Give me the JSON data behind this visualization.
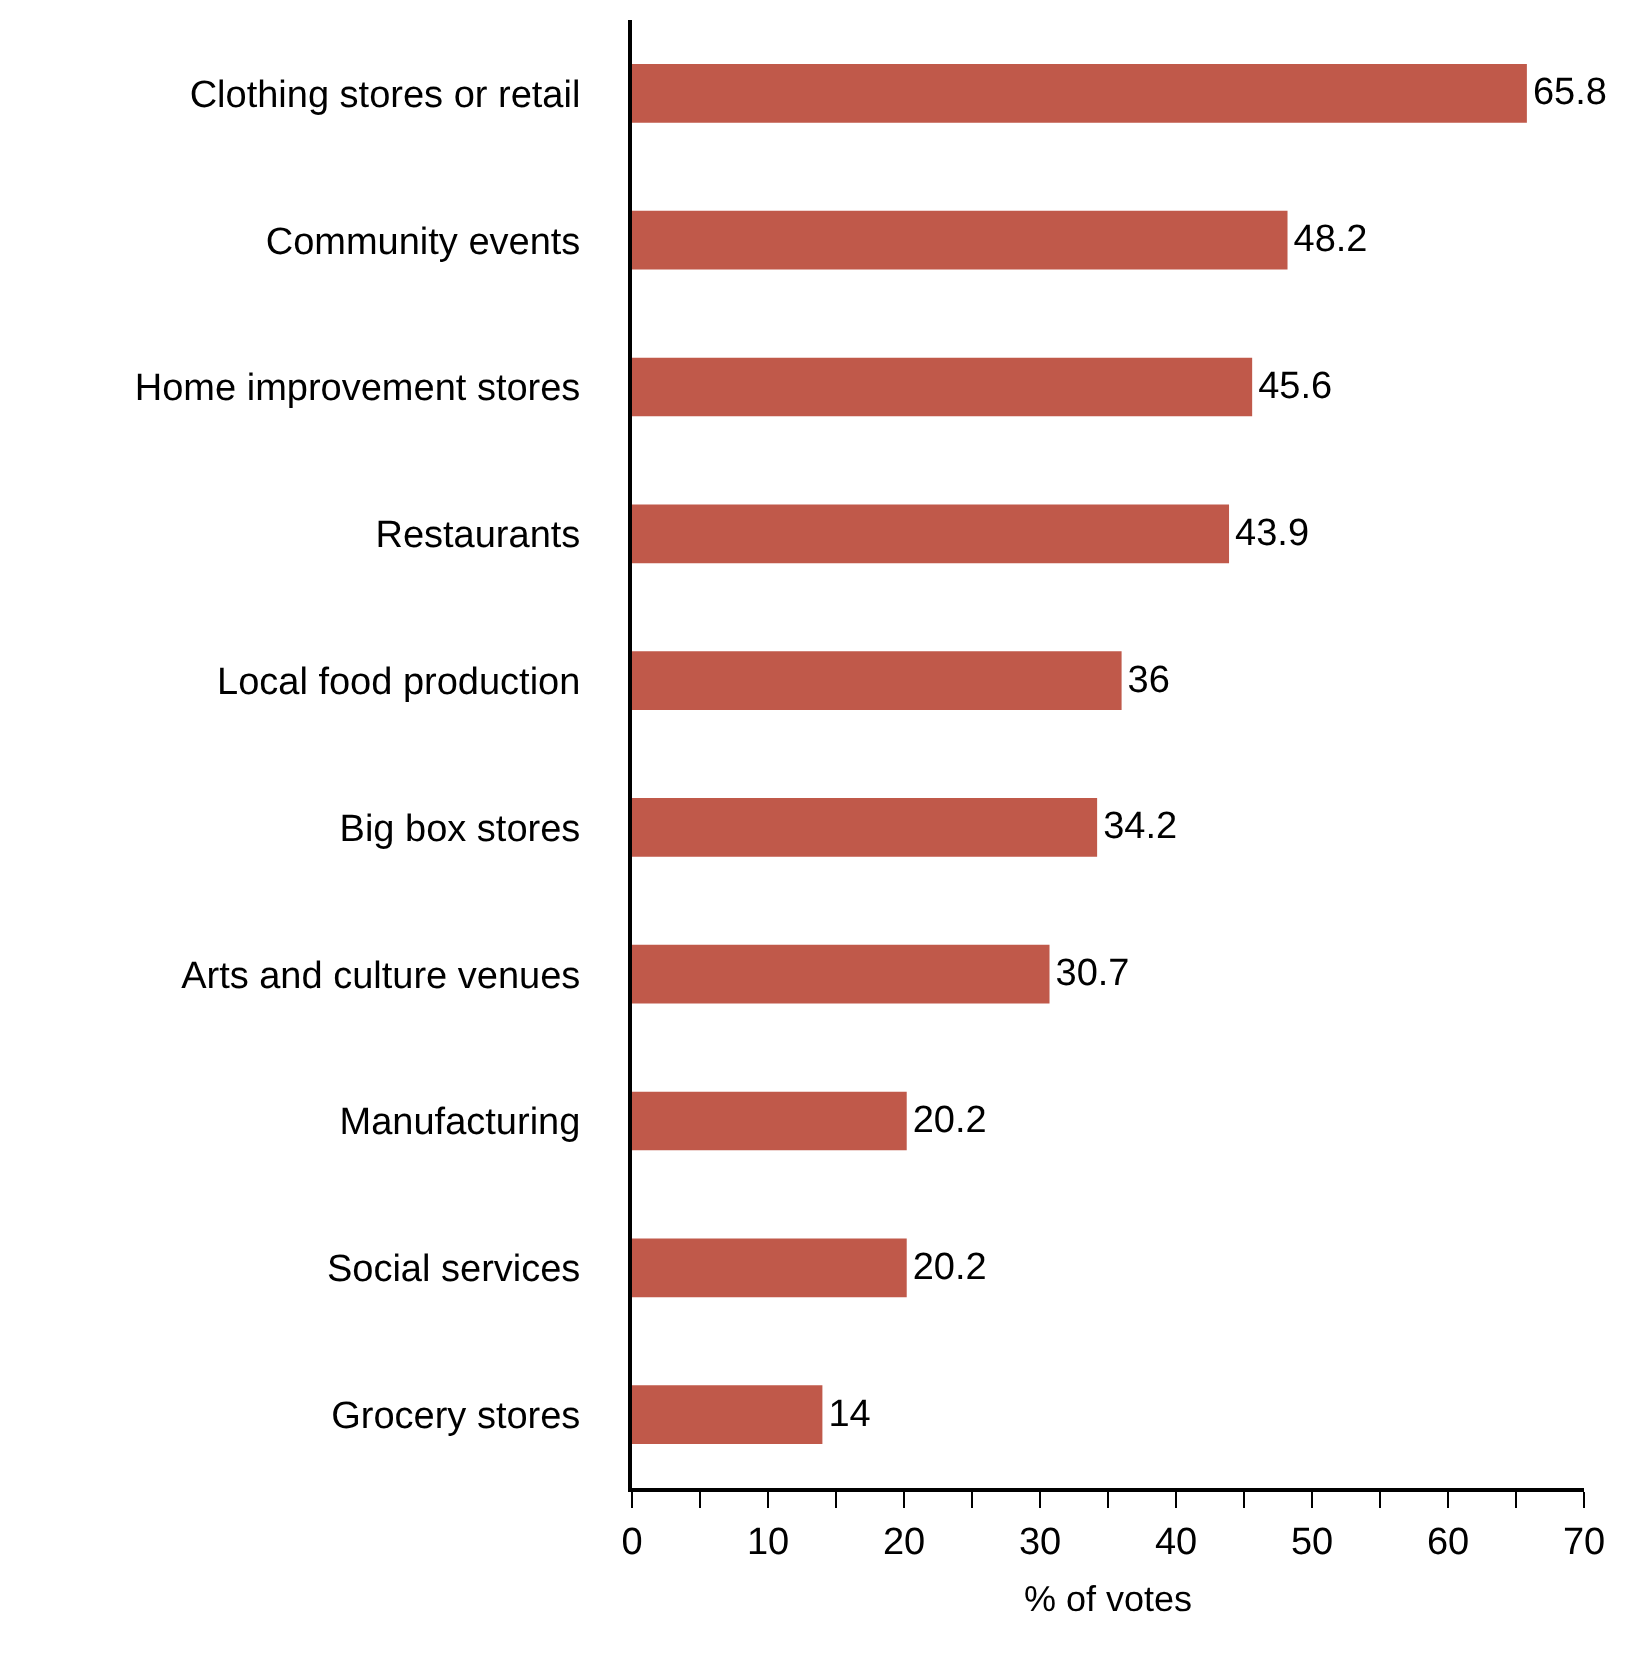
{
  "chart_data": {
    "type": "bar",
    "orientation": "horizontal",
    "xlabel": "% of votes",
    "categories": [
      "Clothing stores or retail",
      "Community events",
      "Home improvement stores",
      "Restaurants",
      "Local food production",
      "Big box stores",
      "Arts and culture venues",
      "Manufacturing",
      "Social services",
      "Grocery stores"
    ],
    "values": [
      65.8,
      48.2,
      45.6,
      43.9,
      36,
      34.2,
      30.7,
      20.2,
      20.2,
      14
    ],
    "color": "#c0594a",
    "data_labels": true,
    "grid": false,
    "legend": false,
    "xlim": [
      0,
      70
    ],
    "xticks": [
      0,
      {
        "value": 5,
        "label": null
      },
      10,
      {
        "value": 15,
        "label": null
      },
      20,
      {
        "value": 25,
        "label": null
      },
      30,
      {
        "value": 35,
        "label": null
      },
      40,
      {
        "value": 45,
        "label": null
      },
      50,
      {
        "value": 55,
        "label": null
      },
      60,
      {
        "value": 65,
        "label": null
      },
      70
    ]
  }
}
